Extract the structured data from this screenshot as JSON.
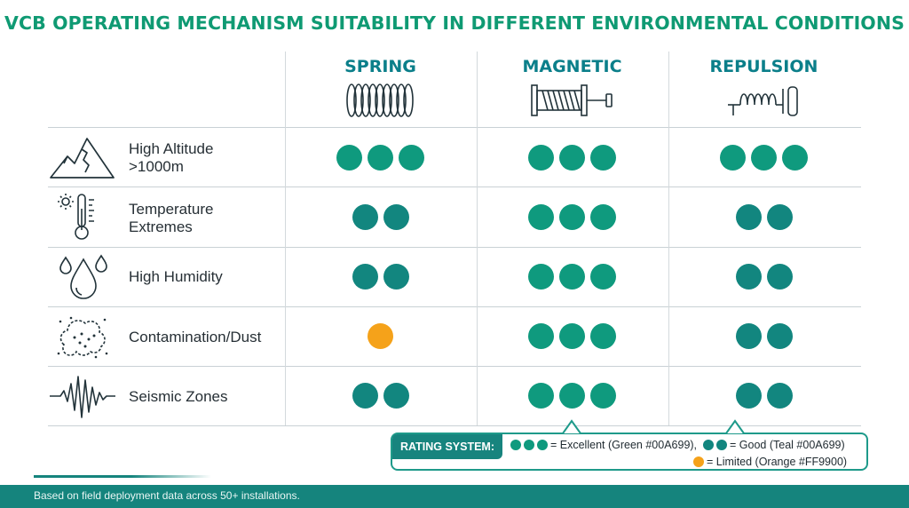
{
  "title": "VCB OPERATING MECHANISM SUITABILITY IN DIFFERENT ENVIRONMENTAL CONDITIONS",
  "columns": [
    {
      "label": "SPRING",
      "icon": "spring-coil-icon"
    },
    {
      "label": "MAGNETIC",
      "icon": "magnetic-actuator-icon"
    },
    {
      "label": "REPULSION",
      "icon": "repulsion-coil-icon"
    }
  ],
  "rows": [
    {
      "label_line1": "High Altitude",
      "label_line2": ">1000m",
      "icon": "mountain-icon",
      "ratings": [
        "excellent",
        "excellent",
        "excellent"
      ]
    },
    {
      "label_line1": "Temperature",
      "label_line2": "Extremes",
      "icon": "thermometer-icon",
      "ratings": [
        "good",
        "excellent",
        "good"
      ]
    },
    {
      "label_line1": "High Humidity",
      "label_line2": "",
      "icon": "droplets-icon",
      "ratings": [
        "good",
        "excellent",
        "good"
      ]
    },
    {
      "label_line1": "Contamination/Dust",
      "label_line2": "",
      "icon": "dust-cloud-icon",
      "ratings": [
        "limited",
        "excellent",
        "good"
      ]
    },
    {
      "label_line1": "Seismic Zones",
      "label_line2": "",
      "icon": "seismic-wave-icon",
      "ratings": [
        "good",
        "excellent",
        "good"
      ]
    }
  ],
  "rating_levels": {
    "excellent": {
      "dots": 3,
      "color": "#0f9a7e"
    },
    "good": {
      "dots": 2,
      "color": "#12867f"
    },
    "limited": {
      "dots": 1,
      "color": "#f5a21a"
    }
  },
  "legend": {
    "tag": "RATING SYSTEM:",
    "excellent_text": "= Excellent (Green #00A699),",
    "good_text": "= Good (Teal #00A699)",
    "limited_text": "= Limited (Orange #FF9900)"
  },
  "footer": "Based on field deployment data across 50+ installations.",
  "colors": {
    "accent": "#0f9a73",
    "teal": "#12867f",
    "orange": "#f5a21a"
  }
}
